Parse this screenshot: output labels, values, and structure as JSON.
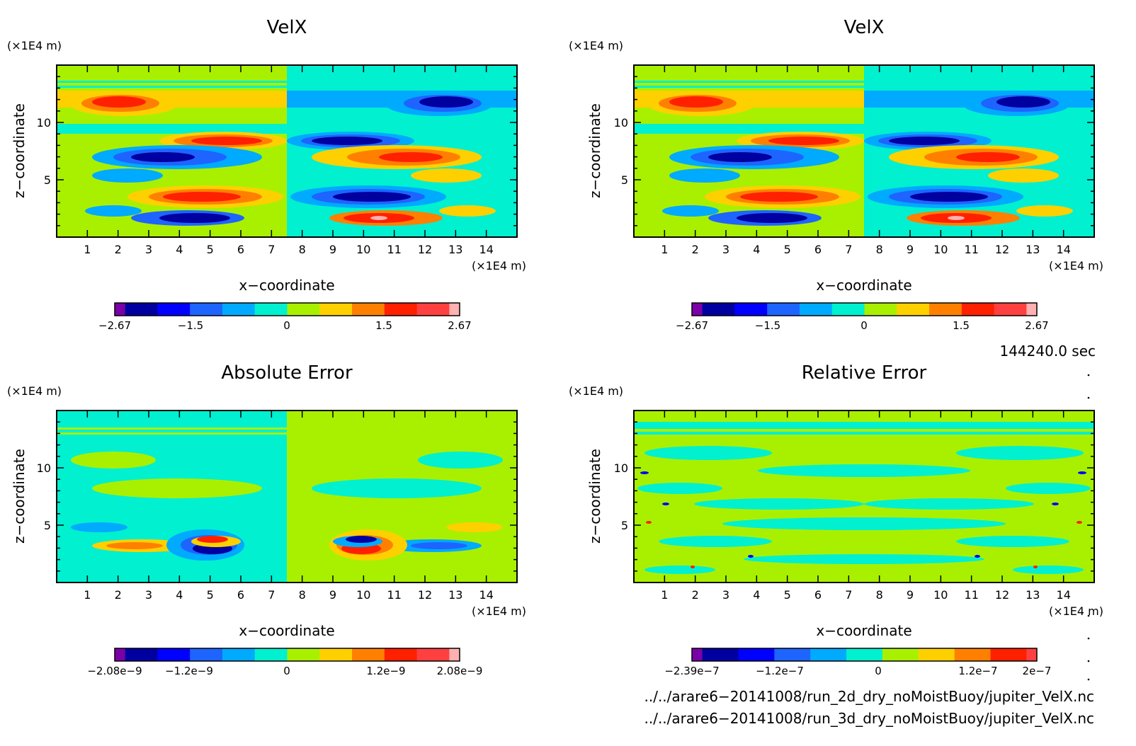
{
  "chart_data": [
    {
      "type": "heatmap",
      "title": "VelX",
      "xlabel": "x−coordinate",
      "ylabel": "z−coordinate",
      "x_unit": "(×1E4 m)",
      "y_unit": "(×1E4 m)",
      "xlim": [
        0,
        15
      ],
      "ylim": [
        0,
        15
      ],
      "x_ticks": [
        "1",
        "2",
        "3",
        "4",
        "5",
        "6",
        "7",
        "8",
        "9",
        "10",
        "11",
        "12",
        "13",
        "14"
      ],
      "y_ticks": [
        "5",
        "10"
      ],
      "colorbar": {
        "ticks": [
          "−2.67",
          "−1.5",
          "0",
          "1.5",
          "2.67"
        ],
        "range": [
          -2.67,
          2.67
        ]
      },
      "colors": [
        "#7a00a8",
        "#0000a0",
        "#0000ff",
        "#1e64ff",
        "#00aaff",
        "#00f0d0",
        "#a8f000",
        "#ffd000",
        "#ff8000",
        "#ff2000",
        "#ff4040",
        "#ffb0b0"
      ]
    },
    {
      "type": "heatmap",
      "title": "VelX",
      "xlabel": "x−coordinate",
      "ylabel": "z−coordinate",
      "x_unit": "(×1E4 m)",
      "y_unit": "(×1E4 m)",
      "xlim": [
        0,
        15
      ],
      "ylim": [
        0,
        15
      ],
      "x_ticks": [
        "1",
        "2",
        "3",
        "4",
        "5",
        "6",
        "7",
        "8",
        "9",
        "10",
        "11",
        "12",
        "13",
        "14"
      ],
      "y_ticks": [
        "5",
        "10"
      ],
      "colorbar": {
        "ticks": [
          "−2.67",
          "−1.5",
          "0",
          "1.5",
          "2.67"
        ],
        "range": [
          -2.67,
          2.67
        ]
      },
      "colors": [
        "#7a00a8",
        "#0000a0",
        "#0000ff",
        "#1e64ff",
        "#00aaff",
        "#00f0d0",
        "#a8f000",
        "#ffd000",
        "#ff8000",
        "#ff2000",
        "#ff4040",
        "#ffb0b0"
      ]
    },
    {
      "type": "heatmap",
      "title": "Absolute Error",
      "xlabel": "x−coordinate",
      "ylabel": "z−coordinate",
      "x_unit": "(×1E4 m)",
      "y_unit": "(×1E4 m)",
      "xlim": [
        0,
        15
      ],
      "ylim": [
        0,
        15
      ],
      "x_ticks": [
        "1",
        "2",
        "3",
        "4",
        "5",
        "6",
        "7",
        "8",
        "9",
        "10",
        "11",
        "12",
        "13",
        "14"
      ],
      "y_ticks": [
        "5",
        "10"
      ],
      "colorbar": {
        "ticks": [
          "−2.08e−9",
          "−1.2e−9",
          "0",
          "1.2e−9",
          "2.08e−9"
        ],
        "range": [
          -2.08e-09,
          2.08e-09
        ]
      },
      "colors": [
        "#7a00a8",
        "#0000a0",
        "#0000ff",
        "#1e64ff",
        "#00aaff",
        "#00f0d0",
        "#a8f000",
        "#ffd000",
        "#ff8000",
        "#ff2000",
        "#ff4040",
        "#ffb0b0"
      ]
    },
    {
      "type": "heatmap",
      "title": "Relative Error",
      "xlabel": "x−coordinate",
      "ylabel": "z−coordinate",
      "x_unit": "(×1E4 m)",
      "y_unit": "(×1E4 m)",
      "xlim": [
        0,
        15
      ],
      "ylim": [
        0,
        15
      ],
      "x_ticks": [
        "1",
        "2",
        "3",
        "4",
        "5",
        "6",
        "7",
        "8",
        "9",
        "10",
        "11",
        "12",
        "13",
        "14"
      ],
      "y_ticks": [
        "5",
        "10"
      ],
      "colorbar": {
        "ticks": [
          "−2.39e−7",
          "−1.2e−7",
          "0",
          "1.2e−7",
          "2e−7"
        ],
        "range": [
          -2.39e-07,
          2e-07
        ]
      },
      "colors": [
        "#7a00a8",
        "#0000a0",
        "#0000ff",
        "#1e64ff",
        "#00aaff",
        "#00f0d0",
        "#a8f000",
        "#ffd000",
        "#ff8000",
        "#ff2000",
        "#ff4040"
      ]
    }
  ],
  "time_label": "144240.0 sec",
  "footer": [
    "../../arare6−20141008/run_2d_dry_noMoistBuoy/jupiter_VelX.nc",
    "../../arare6−20141008/run_3d_dry_noMoistBuoy/jupiter_VelX.nc"
  ]
}
